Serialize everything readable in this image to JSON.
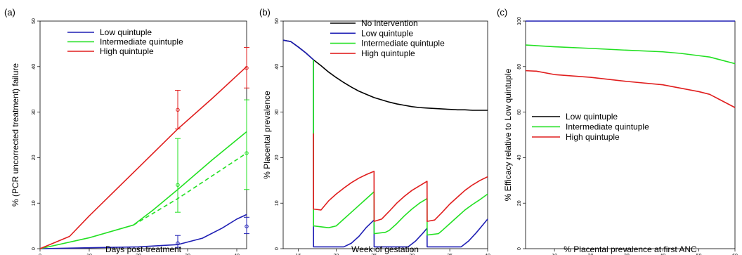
{
  "colors": {
    "black": "#000000",
    "blue": "#1f1fb4",
    "green": "#22e022",
    "red": "#e01e1e"
  },
  "chart_data": [
    {
      "type": "line",
      "panel_label": "(a)",
      "xlabel": "Days post-treatment",
      "ylabel": "% (PCR uncorrected treatment) failure",
      "xlim": [
        0,
        42
      ],
      "ylim": [
        0,
        50
      ],
      "xticks": [
        "0",
        "10",
        "20",
        "30",
        "40"
      ],
      "yticks": [
        "0",
        "10",
        "20",
        "30",
        "40",
        "50"
      ],
      "legend": [
        "Low quintuple",
        "Intermediate quintuple",
        "High quintuple"
      ],
      "series": [
        {
          "name": "Low quintuple",
          "color": "blue",
          "style": "solid",
          "x": [
            0,
            10,
            20,
            28,
            33,
            37,
            40,
            42
          ],
          "y": [
            0,
            0.2,
            0.4,
            0.9,
            2.3,
            4.5,
            6.5,
            7.5
          ]
        },
        {
          "name": "Intermediate quintuple",
          "color": "green",
          "style": "solid",
          "x": [
            0,
            10,
            19,
            23,
            28,
            35,
            42
          ],
          "y": [
            0,
            2.4,
            5.2,
            8.5,
            13,
            19.5,
            25.7
          ]
        },
        {
          "name": "Intermediate quintuple",
          "color": "green",
          "style": "dashed",
          "x": [
            19,
            28,
            35,
            42
          ],
          "y": [
            5.2,
            11,
            16,
            21
          ]
        },
        {
          "name": "High quintuple",
          "color": "red",
          "style": "solid",
          "x": [
            0,
            6,
            10,
            20,
            28,
            35,
            42
          ],
          "y": [
            0,
            2.7,
            7.2,
            17.8,
            26.3,
            33,
            40
          ]
        }
      ],
      "error_bars": [
        {
          "color": "red",
          "x": 28,
          "y": 30.5,
          "lo": 26.3,
          "hi": 34.8
        },
        {
          "color": "red",
          "x": 42,
          "y": 39.7,
          "lo": 35.3,
          "hi": 44.2
        },
        {
          "color": "green",
          "x": 28,
          "y": 14,
          "lo": 8,
          "hi": 24.2
        },
        {
          "color": "green",
          "x": 42,
          "y": 21,
          "lo": 13,
          "hi": 32.7
        },
        {
          "color": "blue",
          "x": 28,
          "y": 1.2,
          "lo": 0.3,
          "hi": 2.9
        },
        {
          "color": "blue",
          "x": 42,
          "y": 4.9,
          "lo": 3.3,
          "hi": 6.9
        }
      ]
    },
    {
      "type": "line",
      "panel_label": "(b)",
      "xlabel": "Week of gestation",
      "ylabel": "% Placental prevalence",
      "xlim": [
        13,
        40
      ],
      "ylim": [
        0,
        50
      ],
      "xticks": [
        "15",
        "20",
        "25",
        "30",
        "35",
        "40"
      ],
      "yticks": [
        "0",
        "10",
        "20",
        "30",
        "40",
        "50"
      ],
      "legend": [
        "No intervention",
        "Low quintuple",
        "Intermediate quintuple",
        "High quintuple"
      ],
      "series": [
        {
          "name": "No intervention",
          "color": "black",
          "style": "solid",
          "x": [
            13,
            14,
            15,
            16,
            17,
            18,
            19,
            20,
            21,
            22,
            23,
            24,
            25,
            26,
            27,
            28,
            29,
            30,
            31,
            32,
            33,
            34,
            35,
            36,
            37,
            38,
            39,
            40
          ],
          "y": [
            45.8,
            45.5,
            44.3,
            43.0,
            41.5,
            40.2,
            38.8,
            37.6,
            36.5,
            35.5,
            34.6,
            33.9,
            33.2,
            32.7,
            32.2,
            31.8,
            31.5,
            31.2,
            31.0,
            30.9,
            30.8,
            30.7,
            30.6,
            30.5,
            30.5,
            30.4,
            30.4,
            30.4
          ]
        },
        {
          "name": "Low quintuple",
          "color": "blue",
          "style": "solid",
          "x": [
            13,
            14,
            15,
            16,
            17,
            17.01,
            21,
            22,
            23,
            24,
            25,
            25.01,
            29.5,
            30.5,
            31.5,
            32,
            32.01,
            36.5,
            37.5,
            38.5,
            39.5,
            40
          ],
          "y": [
            45.8,
            45.5,
            44.3,
            43.0,
            41.5,
            0.4,
            0.4,
            1.2,
            2.7,
            4.7,
            6.3,
            0.4,
            0.4,
            1.7,
            3.5,
            4.5,
            0.4,
            0.4,
            1.7,
            3.5,
            5.5,
            6.5
          ]
        },
        {
          "name": "Intermediate quintuple",
          "color": "green",
          "style": "solid",
          "x": [
            17,
            17.01,
            19,
            20,
            21,
            22,
            23,
            24,
            25,
            25.01,
            26.5,
            27,
            28,
            29,
            30,
            31,
            32,
            32.01,
            33.5,
            34,
            35,
            36,
            37,
            38,
            39,
            40
          ],
          "y": [
            41.5,
            5.0,
            4.6,
            5.0,
            6.5,
            8.0,
            9.5,
            11.0,
            12.5,
            3.3,
            3.6,
            4.0,
            5.5,
            7.2,
            8.7,
            10.0,
            11.0,
            3.0,
            3.3,
            4.0,
            5.5,
            7.0,
            8.5,
            9.7,
            10.8,
            12.0
          ]
        },
        {
          "name": "High quintuple",
          "color": "red",
          "style": "solid",
          "x": [
            17,
            17.01,
            18,
            19,
            20,
            21,
            22,
            23,
            24,
            25,
            25.01,
            26,
            27,
            28,
            29,
            30,
            31,
            32,
            32.01,
            33,
            34,
            35,
            36,
            37,
            38,
            39,
            40
          ],
          "y": [
            25.3,
            8.7,
            8.5,
            10.5,
            12.0,
            13.3,
            14.5,
            15.5,
            16.3,
            17.0,
            6.0,
            6.5,
            8.2,
            10.0,
            11.5,
            12.8,
            13.8,
            14.8,
            6.0,
            6.3,
            8.0,
            9.8,
            11.3,
            12.8,
            14.0,
            15.0,
            15.8
          ]
        }
      ]
    },
    {
      "type": "line",
      "panel_label": "(c)",
      "xlabel": "% Placental prevalence at first ANC",
      "ylabel": "% Efficacy relative to Low quintuple",
      "xlim": [
        2,
        60
      ],
      "ylim": [
        0,
        100
      ],
      "xticks": [
        "10",
        "20",
        "30",
        "40",
        "50",
        "60"
      ],
      "yticks": [
        "0",
        "20",
        "40",
        "60",
        "80",
        "100"
      ],
      "legend": [
        "Low quintuple",
        "Intermediate quintuple",
        "High quintuple"
      ],
      "series": [
        {
          "name": "Low quintuple",
          "color": "blue",
          "style": "solid",
          "x": [
            2,
            60
          ],
          "y": [
            100,
            100
          ]
        },
        {
          "name": "Intermediate quintuple",
          "color": "green",
          "style": "solid",
          "x": [
            2,
            10,
            20,
            30,
            40,
            45,
            50,
            53,
            60
          ],
          "y": [
            89.5,
            88.7,
            88,
            87.2,
            86.5,
            85.8,
            84.8,
            84.2,
            81.3
          ]
        },
        {
          "name": "High quintuple",
          "color": "red",
          "style": "solid",
          "x": [
            2,
            5,
            10,
            20,
            30,
            40,
            45,
            50,
            53,
            60
          ],
          "y": [
            78.2,
            78,
            76.5,
            75.3,
            73.5,
            72,
            70.5,
            69,
            67.8,
            62
          ]
        }
      ]
    }
  ]
}
